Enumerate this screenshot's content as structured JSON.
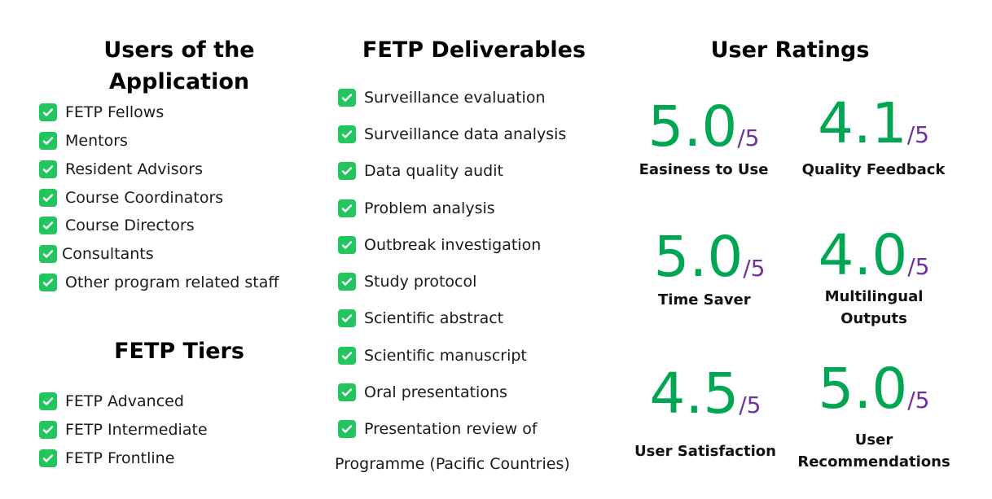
{
  "users": {
    "title_line1": "Users of the",
    "title_line2": "Application",
    "items": [
      "FETP Fellows",
      "Mentors",
      "Resident Advisors",
      "Course Coordinators",
      "Course Directors",
      "Consultants",
      "Other program related staff"
    ]
  },
  "tiers": {
    "title": "FETP Tiers",
    "items": [
      "FETP Advanced",
      "FETP Intermediate",
      "FETP Frontline"
    ]
  },
  "deliverables": {
    "title": "FETP Deliverables",
    "items": [
      "Surveillance evaluation",
      "Surveillance data analysis",
      "Data quality audit",
      "Problem analysis",
      "Outbreak investigation",
      "Study protocol",
      "Scientific abstract",
      "Scientific manuscript",
      "Oral presentations",
      "Presentation review of"
    ],
    "continuation": "Programme (Pacific Countries)"
  },
  "ratings": {
    "title": "User Ratings",
    "out_of": "/5",
    "items": [
      {
        "score": "5.0",
        "label_line1": "Easiness to Use",
        "label_line2": ""
      },
      {
        "score": "4.1",
        "label_line1": "Quality Feedback",
        "label_line2": ""
      },
      {
        "score": "5.0",
        "label_line1": "Time Saver",
        "label_line2": ""
      },
      {
        "score": "4.0",
        "label_line1": "Multilingual",
        "label_line2": "Outputs"
      },
      {
        "score": "4.5",
        "label_line1": "User Satisfaction",
        "label_line2": ""
      },
      {
        "score": "5.0",
        "label_line1": "User",
        "label_line2": "Recommendations"
      }
    ]
  },
  "colors": {
    "score": "#00a651",
    "out_of": "#7030a0",
    "check": "#22c55e"
  },
  "icons": {
    "list_marker": "check-mark-icon"
  }
}
